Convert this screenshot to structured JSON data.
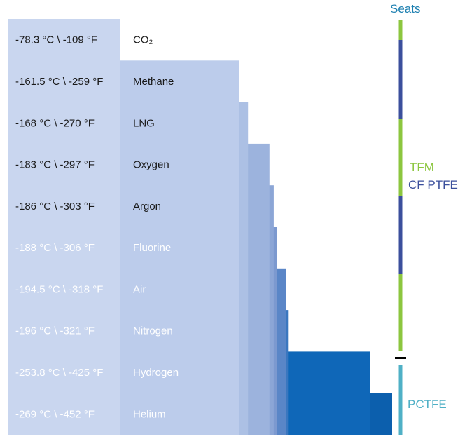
{
  "chart_data": {
    "type": "bar",
    "orientation": "horizontal",
    "categories": [
      "CO₂",
      "Methane",
      "LNG",
      "Oxygen",
      "Argon",
      "Fluorine",
      "Air",
      "Nitrogen",
      "Hydrogen",
      "Helium"
    ],
    "temperatures_c": [
      "-78.3 °C",
      "-161.5 °C",
      "-168 °C",
      "-183 °C",
      "-186 °C",
      "-188 °C",
      "-194.5 °C",
      "-196 °C",
      "-253.8 °C",
      "-269 °C"
    ],
    "temperatures_f": [
      "-109  °F",
      "-259  °F",
      "-270  °F",
      "-297  °F",
      "-303  °F",
      "-306  °F",
      "-318  °F",
      "-321  °F",
      "-425  °F",
      "-452  °F"
    ],
    "values": [
      78.3,
      161.5,
      168,
      183,
      186,
      188,
      194.5,
      196,
      253.8,
      269
    ],
    "separator": " \\ ",
    "bar_colors": [
      "#c9d6ef",
      "#bccceb",
      "#acc0e4",
      "#9cb3dd",
      "#8ca6d6",
      "#7c99cf",
      "#5a86c7",
      "#3a77bf",
      "#0f67b8",
      "#0c5fad"
    ],
    "label_colors": [
      "#1a1a1a",
      "#1a1a1a",
      "#1a1a1a",
      "#1a1a1a",
      "#1a1a1a",
      "#ffffff",
      "#ffffff",
      "#ffffff",
      "#ffffff",
      "#ffffff"
    ]
  },
  "seats": {
    "title": "Seats",
    "tfm_label": "TFM",
    "cf_ptfe_label": "CF PTFE",
    "pctfe_label": "PCTFE",
    "title_color": "#1c7fb0",
    "tfm_color": "#8cc63f",
    "cf_ptfe_color": "#3b4f9c",
    "pctfe_color": "#4fb0c6",
    "marker_color": "#000000"
  }
}
